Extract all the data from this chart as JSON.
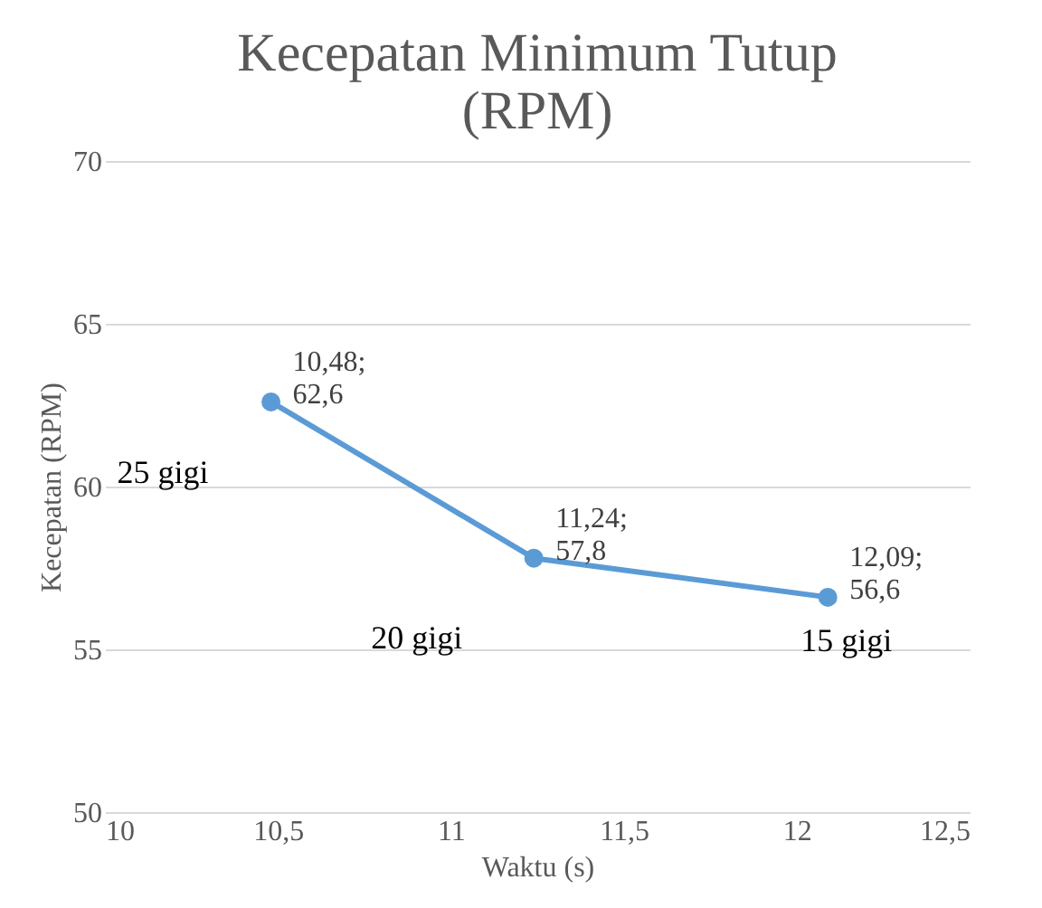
{
  "chart_data": {
    "type": "line",
    "title": [
      "Kecepatan Minimum Tutup",
      "(RPM)"
    ],
    "xlabel": "Waktu (s)",
    "ylabel": "Kecepatan (RPM)",
    "x": [
      10.48,
      11.24,
      12.09
    ],
    "series": [
      {
        "color": "#5b9bd5",
        "values": [
          62.6,
          57.8,
          56.6
        ],
        "value_labels": [
          "10,48;\n62,6",
          "11,24;\n57,8",
          "12,09;\n56,6"
        ]
      }
    ],
    "xlim": [
      10,
      12.5
    ],
    "xticks": [
      10,
      {
        "value": 10.5,
        "label": "10,5"
      },
      11,
      {
        "value": 11.5,
        "label": "11,5"
      },
      12,
      {
        "value": 12.5,
        "label": "12,5"
      }
    ],
    "ylim": [
      50,
      70
    ],
    "yticks": [
      50,
      55,
      60,
      65,
      70
    ],
    "grid": "y",
    "marker": "circle",
    "line_style": "solid",
    "annotations": [
      "25 gigi",
      "20 gigi",
      "15 gigi"
    ]
  }
}
